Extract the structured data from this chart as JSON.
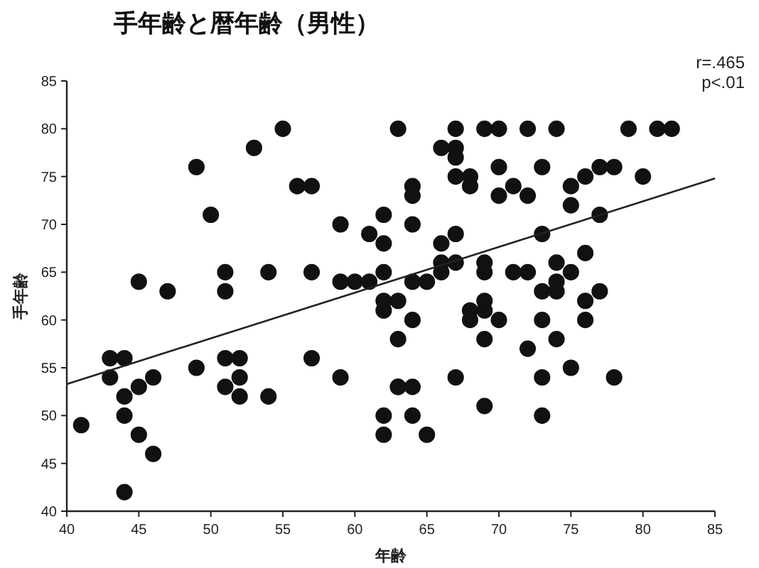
{
  "chart_data": {
    "type": "scatter",
    "title": "手年齢と暦年齢（男性）",
    "xlabel": "年齢",
    "ylabel": "手年齢",
    "annotations": [
      "r=.465",
      "p<.01"
    ],
    "xlim": [
      40,
      85
    ],
    "xticks": [
      40,
      45,
      50,
      55,
      60,
      65,
      70,
      75,
      80,
      85
    ],
    "ylim": [
      40,
      85
    ],
    "yticks": [
      40,
      45,
      50,
      55,
      60,
      65,
      70,
      75,
      80,
      85
    ],
    "grid": false,
    "marker": "circle",
    "series": [
      {
        "color": "#111111",
        "x": [
          55,
          63,
          67,
          69,
          70,
          72,
          74,
          79,
          81,
          82,
          53,
          49,
          50,
          56,
          57,
          59,
          62,
          61,
          62,
          62,
          59,
          60,
          61,
          45,
          47,
          51,
          51,
          54,
          57,
          62,
          63,
          62,
          41,
          43,
          44,
          43,
          44,
          45,
          46,
          44,
          45,
          46,
          44,
          49,
          51,
          52,
          51,
          52,
          52,
          54,
          57,
          59,
          63,
          63,
          62,
          62,
          66,
          67,
          67,
          70,
          73,
          77,
          78,
          67,
          68,
          68,
          80,
          76,
          64,
          64,
          71,
          70,
          72,
          75,
          75,
          77,
          64,
          67,
          66,
          73,
          66,
          67,
          66,
          69,
          69,
          71,
          72,
          74,
          74,
          75,
          76,
          64,
          65,
          73,
          74,
          77,
          76,
          64,
          68,
          69,
          68,
          70,
          73,
          76,
          69,
          69,
          74,
          72,
          75,
          78,
          73,
          67,
          63,
          64,
          64,
          69,
          73,
          65
        ],
        "values": [
          80,
          80,
          80,
          80,
          80,
          80,
          80,
          80,
          80,
          80,
          78,
          76,
          71,
          74,
          74,
          70,
          71,
          69,
          68,
          65,
          64,
          64,
          64,
          64,
          63,
          65,
          63,
          65,
          65,
          62,
          62,
          61,
          49,
          56,
          56,
          54,
          52,
          53,
          54,
          50,
          48,
          46,
          42,
          55,
          56,
          56,
          53,
          54,
          52,
          52,
          56,
          54,
          58,
          53,
          50,
          48,
          78,
          78,
          77,
          76,
          76,
          76,
          76,
          75,
          75,
          74,
          75,
          75,
          74,
          73,
          74,
          73,
          73,
          74,
          72,
          71,
          70,
          69,
          68,
          69,
          66,
          66,
          65,
          66,
          65,
          65,
          65,
          66,
          64,
          65,
          67,
          64,
          64,
          63,
          63,
          63,
          62,
          60,
          61,
          61,
          60,
          60,
          60,
          60,
          62,
          58,
          58,
          57,
          55,
          54,
          54,
          54,
          53,
          53,
          50,
          51,
          50,
          48
        ]
      },
      {
        "type": "line",
        "color": "#222222",
        "x": [
          40,
          85
        ],
        "values": [
          53.3,
          74.8
        ],
        "line_style": "solid",
        "marker": "none"
      }
    ]
  }
}
